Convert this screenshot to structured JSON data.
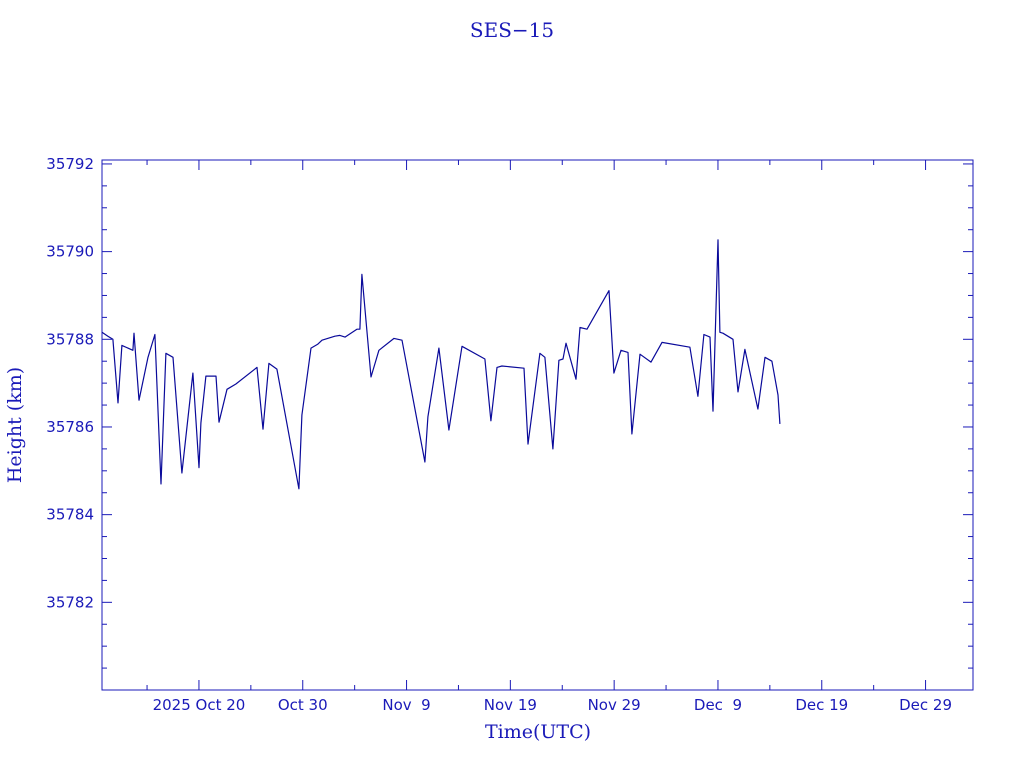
{
  "chart_data": {
    "type": "line",
    "title": "SES−15",
    "xlabel": "Time(UTC)",
    "ylabel": "Height (km)",
    "x_units": "days since 2025 Oct 20 (UTC)",
    "xlim": [
      -9.34,
      74.57
    ],
    "ylim": [
      35780,
      35792.09
    ],
    "grid": false,
    "x_major_step": 10,
    "x_minor_step": 5,
    "y_major_step": 2,
    "y_minor_step": 0.5,
    "x_ticks": [
      {
        "value": 0,
        "label": "2025 Oct 20"
      },
      {
        "value": 10,
        "label": "Oct 30"
      },
      {
        "value": 20,
        "label": "Nov  9"
      },
      {
        "value": 30,
        "label": "Nov 19"
      },
      {
        "value": 40,
        "label": "Nov 29"
      },
      {
        "value": 50,
        "label": "Dec  9"
      },
      {
        "value": 60,
        "label": "Dec 19"
      },
      {
        "value": 70,
        "label": "Dec 29"
      }
    ],
    "y_ticks": [
      {
        "value": 35782,
        "label": "35782"
      },
      {
        "value": 35784,
        "label": "35784"
      },
      {
        "value": 35786,
        "label": "35786"
      },
      {
        "value": 35788,
        "label": "35788"
      },
      {
        "value": 35790,
        "label": "35790"
      },
      {
        "value": 35792,
        "label": "35792"
      }
    ],
    "color": "#0a0a9a",
    "axis_color": "#1a1ab8",
    "series": [
      {
        "name": "SES-15 height",
        "x": [
          -9.34,
          -8.77,
          -8.29,
          -7.8,
          -7.42,
          -6.36,
          -6.26,
          -5.78,
          -4.91,
          -4.24,
          -3.66,
          -3.18,
          -2.5,
          -1.64,
          -0.58,
          0,
          0.19,
          0.67,
          1.64,
          1.93,
          2.7,
          3.56,
          5.59,
          6.17,
          6.74,
          7.51,
          9.63,
          9.92,
          10.79,
          11.46,
          11.85,
          13.1,
          13.58,
          14.07,
          15.22,
          15.51,
          15.7,
          16.57,
          17.34,
          18.79,
          19.56,
          21.77,
          22.06,
          23.12,
          24.08,
          25.34,
          27.55,
          28.13,
          28.71,
          29.19,
          31.31,
          31.7,
          32.85,
          33.33,
          34.1,
          34.68,
          35.07,
          35.36,
          36.32,
          36.71,
          37.38,
          39.5,
          39.98,
          40.66,
          41.33,
          41.71,
          42.49,
          43.55,
          44.61,
          47.3,
          48.07,
          48.65,
          49.23,
          49.52,
          50.0,
          50.19,
          50.48,
          51.45,
          51.93,
          52.6,
          53.85,
          54.53,
          55.2,
          55.78,
          55.97
        ],
        "y": [
          35788.16,
          35788.07,
          35788.0,
          35786.55,
          35787.86,
          35787.75,
          35788.14,
          35786.61,
          35787.59,
          35788.11,
          35784.7,
          35787.68,
          35787.59,
          35784.95,
          35787.23,
          35785.07,
          35786.09,
          35787.16,
          35787.16,
          35786.11,
          35786.86,
          35786.98,
          35787.36,
          35785.95,
          35787.45,
          35787.32,
          35784.59,
          35786.27,
          35787.8,
          35787.89,
          35787.98,
          35788.07,
          35788.09,
          35788.05,
          35788.23,
          35788.23,
          35789.48,
          35787.14,
          35787.75,
          35788.02,
          35787.98,
          35785.2,
          35786.23,
          35787.8,
          35785.93,
          35787.84,
          35787.55,
          35786.14,
          35787.36,
          35787.39,
          35787.34,
          35785.61,
          35787.68,
          35787.59,
          35785.5,
          35787.52,
          35787.55,
          35787.91,
          35787.09,
          35788.27,
          35788.23,
          35789.11,
          35787.23,
          35787.75,
          35787.7,
          35785.84,
          35787.66,
          35787.48,
          35787.93,
          35787.82,
          35786.7,
          35788.11,
          35788.05,
          35786.36,
          35790.27,
          35788.16,
          35788.14,
          35788.0,
          35786.8,
          35787.77,
          35786.41,
          35787.59,
          35787.5,
          35786.73,
          35786.07
        ]
      }
    ]
  }
}
